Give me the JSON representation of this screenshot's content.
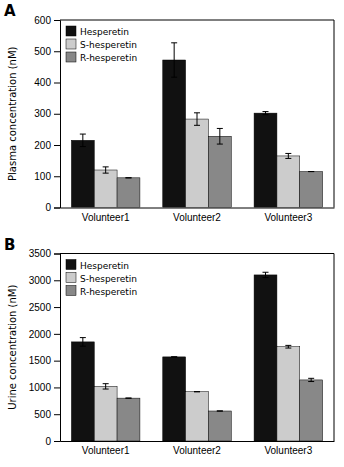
{
  "chart_data": [
    {
      "type": "bar",
      "title": "A",
      "ylabel": "Plasma concentration (nM)",
      "categories": [
        "Volunteer1",
        "Volunteer2",
        "Volunteer3"
      ],
      "series": [
        {
          "name": "Hesperetin",
          "color": "#111111",
          "values": [
            215,
            472,
            302
          ],
          "errors": [
            20,
            55,
            5
          ]
        },
        {
          "name": "S-hesperetin",
          "color": "#cccccc",
          "values": [
            120,
            283,
            165
          ],
          "errors": [
            10,
            20,
            8
          ]
        },
        {
          "name": "R-hesperetin",
          "color": "#888888",
          "values": [
            95,
            228,
            115
          ],
          "errors": [
            0,
            25,
            0
          ]
        }
      ],
      "ylim": [
        0,
        600
      ],
      "yticks": [
        0,
        100,
        200,
        300,
        400,
        500,
        600
      ],
      "grid": false,
      "legend": "top-left"
    },
    {
      "type": "bar",
      "title": "B",
      "ylabel": "Urine concentration (nM)",
      "categories": [
        "Volunteer1",
        "Volunteer2",
        "Volunteer3"
      ],
      "series": [
        {
          "name": "Hesperetin",
          "color": "#111111",
          "values": [
            1850,
            1570,
            3100
          ],
          "errors": [
            80,
            0,
            50
          ]
        },
        {
          "name": "S-hesperetin",
          "color": "#cccccc",
          "values": [
            1020,
            920,
            1760
          ],
          "errors": [
            50,
            0,
            25
          ]
        },
        {
          "name": "R-hesperetin",
          "color": "#888888",
          "values": [
            800,
            560,
            1140
          ],
          "errors": [
            0,
            0,
            30
          ]
        }
      ],
      "ylim": [
        0,
        3500
      ],
      "yticks": [
        0,
        500,
        1000,
        1500,
        2000,
        2500,
        3000,
        3500
      ],
      "grid": false,
      "legend": "top-left"
    }
  ]
}
